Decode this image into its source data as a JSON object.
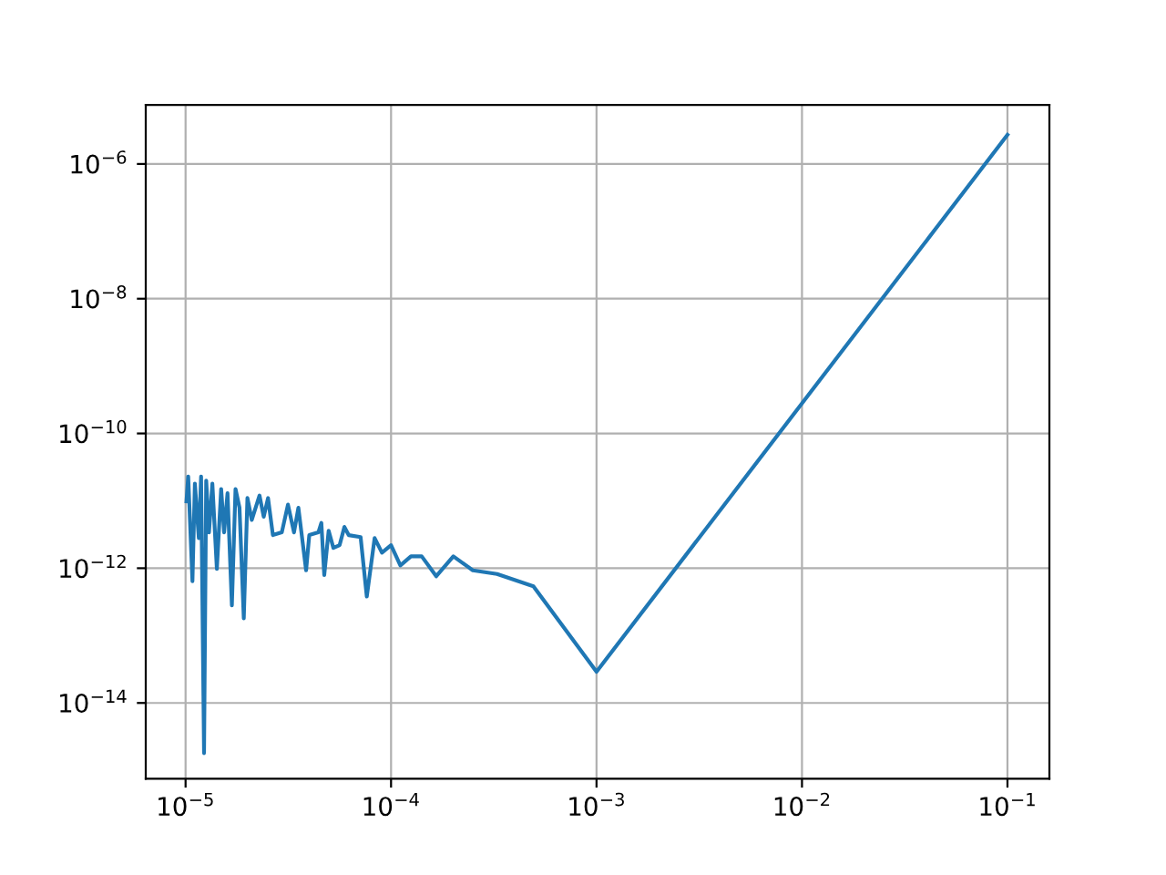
{
  "chart_data": {
    "type": "line",
    "log": "xy",
    "grid": true,
    "xlim": [
      6.4e-06,
      0.16
    ],
    "ylim": [
      7.5e-16,
      7.5e-06
    ],
    "xticks": [
      {
        "value": 1e-05,
        "label": "10$^{−5}$"
      },
      {
        "value": 0.0001,
        "label": "10$^{−4}$"
      },
      {
        "value": 0.001,
        "label": "10$^{−3}$"
      },
      {
        "value": 0.01,
        "label": "10$^{−2}$"
      },
      {
        "value": 0.1,
        "label": "10$^{−1}$"
      }
    ],
    "yticks": [
      {
        "value": 1e-14,
        "label": "10$^{−14}$"
      },
      {
        "value": 1e-12,
        "label": "10$^{−12}$"
      },
      {
        "value": 1e-10,
        "label": "10$^{−10}$"
      },
      {
        "value": 1e-08,
        "label": "10$^{−8}$"
      },
      {
        "value": 1e-06,
        "label": "10$^{−6}$"
      }
    ],
    "series": [
      {
        "color": "#1f77b4",
        "x": [
          1.01e-05,
          1.03e-05,
          1.08e-05,
          1.11e-05,
          1.16e-05,
          1.19e-05,
          1.23e-05,
          1.26e-05,
          1.3e-05,
          1.35e-05,
          1.42e-05,
          1.49e-05,
          1.54e-05,
          1.6e-05,
          1.68e-05,
          1.75e-05,
          1.83e-05,
          1.92e-05,
          2e-05,
          2.1e-05,
          2.29e-05,
          2.4e-05,
          2.52e-05,
          2.66e-05,
          2.94e-05,
          3.15e-05,
          3.37e-05,
          3.54e-05,
          3.86e-05,
          4e-05,
          4.43e-05,
          4.58e-05,
          4.73e-05,
          4.97e-05,
          5.24e-05,
          5.62e-05,
          5.93e-05,
          6.22e-05,
          7.11e-05,
          7.62e-05,
          8.32e-05,
          9.03e-05,
          0.0001,
          0.000111,
          0.000125,
          0.000141,
          0.000166,
          0.000201,
          0.00025,
          0.000328,
          0.000493,
          0.001,
          0.1
        ],
        "values": [
          9.8e-12,
          2.3e-11,
          6.4e-13,
          1.8e-11,
          2.8e-12,
          2.3e-11,
          1.8e-15,
          2e-11,
          3.4e-12,
          1.8e-11,
          9.8e-13,
          1.5e-11,
          3.4e-12,
          1.3e-11,
          2.8e-13,
          1.5e-11,
          7.9e-12,
          1.8e-13,
          1.1e-11,
          5.2e-12,
          1.2e-11,
          5.8e-12,
          1.1e-11,
          3.1e-12,
          3.4e-12,
          8.8e-12,
          3.4e-12,
          7.9e-12,
          9.3e-13,
          3.1e-12,
          3.4e-12,
          4.7e-12,
          7.9e-13,
          3.6e-12,
          2e-12,
          2.2e-12,
          4.1e-12,
          3.1e-12,
          2.9e-12,
          3.8e-13,
          2.8e-12,
          1.7e-12,
          2.2e-12,
          1.1e-12,
          1.5e-12,
          1.5e-12,
          7.6e-13,
          1.5e-12,
          9.3e-13,
          8.2e-13,
          5.4e-13,
          2.9e-14,
          2.7e-06
        ]
      }
    ]
  }
}
